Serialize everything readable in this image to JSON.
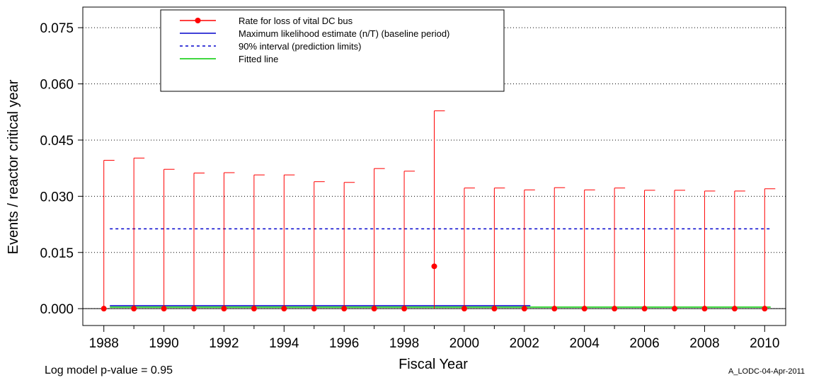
{
  "chart_data": {
    "type": "line",
    "xlabel": "Fiscal Year",
    "ylabel": "Events / reactor critical year",
    "xlim": [
      1987.3,
      2010.7
    ],
    "ylim": [
      -0.0045,
      0.0805
    ],
    "x_ticks": [
      1988,
      1990,
      1992,
      1994,
      1996,
      1998,
      2000,
      2002,
      2004,
      2006,
      2008,
      2010
    ],
    "x_minor_ticks": [
      1989,
      1991,
      1993,
      1995,
      1997,
      1999,
      2001,
      2003,
      2005,
      2007,
      2009
    ],
    "y_ticks": [
      0.0,
      0.015,
      0.03,
      0.045,
      0.06,
      0.075
    ],
    "y_tick_labels": [
      "0.000",
      "0.015",
      "0.030",
      "0.045",
      "0.060",
      "0.075"
    ],
    "grid": "horizontal dotted",
    "legend_placement": "top-left",
    "series": [
      {
        "name": "Rate for loss of vital DC bus",
        "kind": "points_with_intervals",
        "color": "#ff0000",
        "x": [
          1988,
          1989,
          1990,
          1991,
          1992,
          1993,
          1994,
          1995,
          1996,
          1997,
          1998,
          1999,
          2000,
          2001,
          2002,
          2003,
          2004,
          2005,
          2006,
          2007,
          2008,
          2009,
          2010
        ],
        "y": [
          0.0,
          0.0,
          0.0,
          0.0,
          0.0,
          0.0,
          0.0,
          0.0,
          0.0,
          0.0,
          0.0,
          0.0113,
          0.0,
          0.0,
          0.0,
          0.0,
          0.0,
          0.0,
          0.0,
          0.0,
          0.0,
          0.0,
          0.0
        ],
        "upper": [
          0.0396,
          0.0402,
          0.0372,
          0.0362,
          0.0363,
          0.0357,
          0.0357,
          0.0339,
          0.0337,
          0.0374,
          0.0367,
          0.0528,
          0.0322,
          0.0322,
          0.0317,
          0.0323,
          0.0317,
          0.0322,
          0.0316,
          0.0316,
          0.0314,
          0.0314,
          0.032
        ],
        "lower": [
          0.0,
          0.0,
          0.0,
          0.0,
          0.0,
          0.0,
          0.0,
          0.0,
          0.0,
          0.0,
          0.0,
          0.0,
          0.0,
          0.0,
          0.0,
          0.0,
          0.0,
          0.0,
          0.0,
          0.0,
          0.0,
          0.0,
          0.0
        ]
      },
      {
        "name": "Maximum likelihood estimate (n/T) (baseline period)",
        "kind": "line",
        "color": "#0000cc",
        "x": [
          1988.2,
          2002.2
        ],
        "y": [
          0.0008,
          0.0008
        ]
      },
      {
        "name": "90% interval (prediction limits)",
        "kind": "dashed_line",
        "color": "#0000cc",
        "x": [
          1988.2,
          2010.2
        ],
        "y": [
          0.0213,
          0.0213
        ]
      },
      {
        "name": "Fitted line",
        "kind": "line",
        "color": "#00cc00",
        "x": [
          1988.2,
          2010.2
        ],
        "y": [
          0.0004,
          0.0004
        ]
      }
    ]
  },
  "footer": {
    "pvalue_text": "Log model p-value = 0.95",
    "source_id": "A_LODC-04-Apr-2011"
  }
}
